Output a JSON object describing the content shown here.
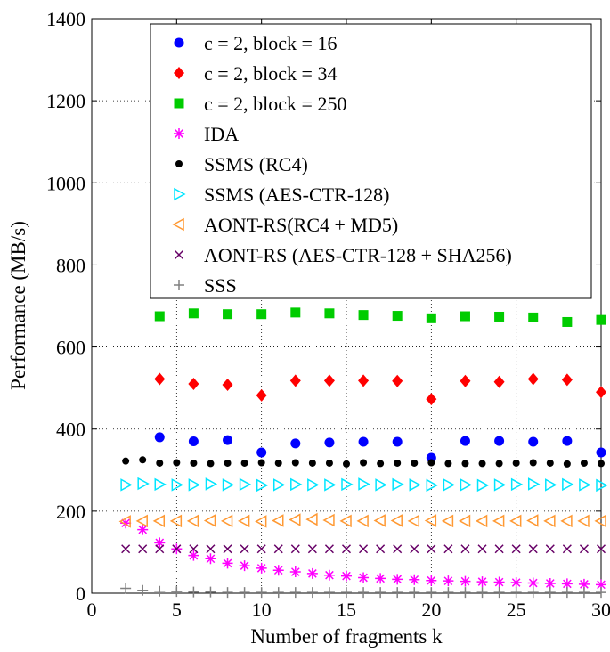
{
  "chart_data": {
    "type": "scatter",
    "title": "",
    "xlabel": "Number of fragments k",
    "ylabel": "Performance (MB/s)",
    "xlim": [
      0,
      30
    ],
    "ylim": [
      0,
      1400
    ],
    "xticks": [
      0,
      5,
      10,
      15,
      20,
      25,
      30
    ],
    "yticks": [
      0,
      200,
      400,
      600,
      800,
      1000,
      1200,
      1400
    ],
    "grid": true,
    "legend_position": "top-right",
    "series": [
      {
        "name": "c = 2, block = 16",
        "marker": "circle",
        "color": "#0000ff",
        "x": [
          4,
          6,
          8,
          10,
          12,
          14,
          16,
          18,
          20,
          22,
          24,
          26,
          28,
          30
        ],
        "y": [
          380,
          370,
          373,
          343,
          365,
          367,
          369,
          369,
          330,
          371,
          371,
          369,
          371,
          343
        ]
      },
      {
        "name": "c = 2, block = 34",
        "marker": "diamond",
        "color": "#ff0000",
        "x": [
          4,
          6,
          8,
          10,
          12,
          14,
          16,
          18,
          20,
          22,
          24,
          26,
          28,
          30
        ],
        "y": [
          522,
          510,
          508,
          482,
          518,
          518,
          518,
          517,
          473,
          517,
          515,
          522,
          520,
          490
        ]
      },
      {
        "name": "c = 2, block = 250",
        "marker": "square",
        "color": "#00cc00",
        "x": [
          4,
          6,
          8,
          10,
          12,
          14,
          16,
          18,
          20,
          22,
          24,
          26,
          28,
          30
        ],
        "y": [
          675,
          682,
          680,
          680,
          684,
          682,
          678,
          676,
          670,
          675,
          674,
          672,
          661,
          666
        ]
      },
      {
        "name": "IDA",
        "marker": "asterisk",
        "color": "#ff00ff",
        "x": [
          2,
          3,
          4,
          5,
          6,
          7,
          8,
          9,
          10,
          11,
          12,
          13,
          14,
          15,
          16,
          17,
          18,
          19,
          20,
          21,
          22,
          23,
          24,
          25,
          26,
          27,
          28,
          29,
          30
        ],
        "y": [
          171,
          155,
          123,
          108,
          92,
          84,
          73,
          67,
          61,
          56,
          52,
          48,
          44,
          42,
          38,
          36,
          34,
          33,
          31,
          30,
          29,
          28,
          27,
          26,
          25,
          24,
          23,
          22,
          21
        ]
      },
      {
        "name": "SSMS (RC4)",
        "marker": "dot",
        "color": "#000000",
        "x": [
          2,
          3,
          4,
          5,
          6,
          7,
          8,
          9,
          10,
          11,
          12,
          13,
          14,
          15,
          16,
          17,
          18,
          19,
          20,
          21,
          22,
          23,
          24,
          25,
          26,
          27,
          28,
          29,
          30
        ],
        "y": [
          322,
          325,
          317,
          318,
          317,
          316,
          317,
          317,
          318,
          317,
          318,
          317,
          317,
          315,
          318,
          316,
          317,
          317,
          318,
          316,
          316,
          316,
          316,
          317,
          318,
          317,
          315,
          317,
          316
        ]
      },
      {
        "name": "SSMS (AES-CTR-128)",
        "marker": "triangle-right",
        "color": "#00e5ff",
        "x": [
          2,
          3,
          4,
          5,
          6,
          7,
          8,
          9,
          10,
          11,
          12,
          13,
          14,
          15,
          16,
          17,
          18,
          19,
          20,
          21,
          22,
          23,
          24,
          25,
          26,
          27,
          28,
          29,
          30
        ],
        "y": [
          264,
          267,
          265,
          264,
          264,
          266,
          264,
          265,
          263,
          264,
          265,
          264,
          264,
          265,
          266,
          264,
          265,
          264,
          263,
          264,
          264,
          263,
          264,
          265,
          266,
          264,
          265,
          264,
          263
        ]
      },
      {
        "name": "AONT-RS(RC4 + MD5)",
        "marker": "triangle-left",
        "color": "#ff9933",
        "x": [
          2,
          3,
          4,
          5,
          6,
          7,
          8,
          9,
          10,
          11,
          12,
          13,
          14,
          15,
          16,
          17,
          18,
          19,
          20,
          21,
          22,
          23,
          24,
          25,
          26,
          27,
          28,
          29,
          30
        ],
        "y": [
          175,
          176,
          176,
          176,
          176,
          177,
          176,
          176,
          175,
          177,
          179,
          180,
          178,
          176,
          176,
          177,
          177,
          176,
          177,
          176,
          176,
          176,
          176,
          176,
          177,
          176,
          176,
          176,
          176
        ]
      },
      {
        "name": "AONT-RS (AES-CTR-128 + SHA256)",
        "marker": "x",
        "color": "#660066",
        "x": [
          2,
          3,
          4,
          5,
          6,
          7,
          8,
          9,
          10,
          11,
          12,
          13,
          14,
          15,
          16,
          17,
          18,
          19,
          20,
          21,
          22,
          23,
          24,
          25,
          26,
          27,
          28,
          29,
          30
        ],
        "y": [
          108,
          108,
          108,
          108,
          108,
          108,
          108,
          108,
          108,
          108,
          108,
          108,
          108,
          108,
          108,
          108,
          108,
          108,
          108,
          108,
          108,
          108,
          108,
          108,
          108,
          108,
          108,
          108,
          108
        ]
      },
      {
        "name": "SSS",
        "marker": "plus",
        "color": "#808080",
        "x": [
          2,
          3,
          4,
          5,
          6,
          7,
          8,
          9,
          10,
          11,
          12,
          13,
          14,
          15,
          16,
          17,
          18,
          19,
          20,
          21,
          22,
          23,
          24,
          25,
          26,
          27,
          28,
          29,
          30
        ],
        "y": [
          12,
          7,
          5,
          4,
          3,
          3,
          2,
          2,
          2,
          2,
          2,
          2,
          2,
          2,
          2,
          2,
          2,
          2,
          2,
          2,
          2,
          2,
          2,
          2,
          2,
          2,
          2,
          2,
          2
        ]
      }
    ]
  }
}
